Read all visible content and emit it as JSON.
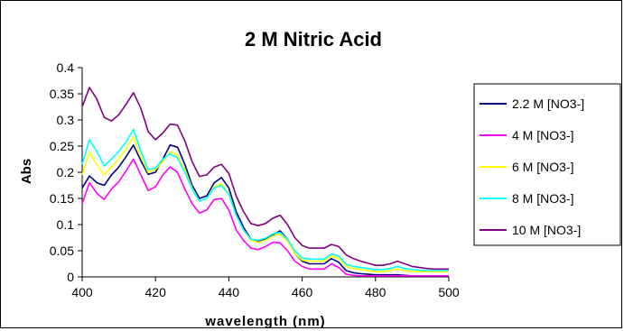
{
  "chart_data": {
    "type": "line",
    "title": "2 M Nitric Acid",
    "xlabel": "wavelength (nm)",
    "ylabel": "Abs",
    "xlim": [
      400,
      500
    ],
    "ylim": [
      0,
      0.4
    ],
    "xticks": [
      "400",
      "420",
      "440",
      "460",
      "480",
      "500"
    ],
    "yticks": [
      "0",
      "0.05",
      "0.1",
      "0.15",
      "0.2",
      "0.25",
      "0.3",
      "0.35",
      "0.4"
    ],
    "grid": false,
    "legend_position": "right",
    "x": [
      400,
      402,
      404,
      406,
      408,
      410,
      412,
      414,
      416,
      418,
      420,
      422,
      424,
      426,
      428,
      430,
      432,
      434,
      436,
      438,
      440,
      442,
      444,
      446,
      448,
      450,
      452,
      454,
      456,
      458,
      460,
      462,
      464,
      466,
      468,
      470,
      472,
      474,
      476,
      478,
      480,
      482,
      484,
      486,
      488,
      490,
      492,
      494,
      496,
      498,
      500
    ],
    "series": [
      {
        "name": "2.2 M [NO3-]",
        "color": "#000080",
        "values": [
          0.17,
          0.193,
          0.18,
          0.175,
          0.195,
          0.21,
          0.23,
          0.252,
          0.222,
          0.196,
          0.2,
          0.225,
          0.252,
          0.248,
          0.215,
          0.175,
          0.15,
          0.155,
          0.18,
          0.19,
          0.17,
          0.125,
          0.095,
          0.072,
          0.068,
          0.072,
          0.08,
          0.088,
          0.072,
          0.045,
          0.03,
          0.025,
          0.025,
          0.025,
          0.035,
          0.028,
          0.012,
          0.008,
          0.006,
          0.005,
          0.004,
          0.004,
          0.004,
          0.004,
          0.003,
          0.002,
          0.002,
          0.002,
          0.002,
          0.002,
          0.002
        ]
      },
      {
        "name": "4 M [NO3-]",
        "color": "#ff00ff",
        "values": [
          0.14,
          0.18,
          0.16,
          0.148,
          0.168,
          0.182,
          0.203,
          0.225,
          0.195,
          0.165,
          0.172,
          0.195,
          0.21,
          0.2,
          0.168,
          0.14,
          0.122,
          0.128,
          0.148,
          0.15,
          0.128,
          0.09,
          0.07,
          0.055,
          0.052,
          0.058,
          0.066,
          0.065,
          0.05,
          0.03,
          0.02,
          0.015,
          0.015,
          0.015,
          0.025,
          0.018,
          0.005,
          0.003,
          0.002,
          0.002,
          0.002,
          0.002,
          0.002,
          0.002,
          0.002,
          0.002,
          0.002,
          0.002,
          0.002,
          0.002,
          0.002
        ]
      },
      {
        "name": "6 M [NO3-]",
        "color": "#ffff00",
        "values": [
          0.195,
          0.238,
          0.215,
          0.195,
          0.21,
          0.225,
          0.245,
          0.268,
          0.23,
          0.2,
          0.205,
          0.22,
          0.24,
          0.232,
          0.205,
          0.17,
          0.145,
          0.15,
          0.172,
          0.178,
          0.16,
          0.118,
          0.09,
          0.07,
          0.066,
          0.07,
          0.078,
          0.082,
          0.068,
          0.045,
          0.032,
          0.03,
          0.03,
          0.03,
          0.04,
          0.035,
          0.02,
          0.016,
          0.014,
          0.012,
          0.01,
          0.01,
          0.012,
          0.015,
          0.012,
          0.01,
          0.01,
          0.01,
          0.01,
          0.01,
          0.01
        ]
      },
      {
        "name": "8 M [NO3-]",
        "color": "#00ffff",
        "values": [
          0.215,
          0.262,
          0.24,
          0.212,
          0.225,
          0.24,
          0.258,
          0.282,
          0.24,
          0.205,
          0.208,
          0.225,
          0.235,
          0.228,
          0.2,
          0.168,
          0.145,
          0.15,
          0.17,
          0.175,
          0.158,
          0.118,
          0.09,
          0.072,
          0.07,
          0.074,
          0.082,
          0.085,
          0.072,
          0.05,
          0.036,
          0.034,
          0.034,
          0.034,
          0.044,
          0.04,
          0.024,
          0.02,
          0.018,
          0.016,
          0.014,
          0.014,
          0.016,
          0.02,
          0.016,
          0.014,
          0.013,
          0.012,
          0.012,
          0.012,
          0.012
        ]
      },
      {
        "name": "10 M [NO3-]",
        "color": "#800080",
        "values": [
          0.325,
          0.362,
          0.34,
          0.305,
          0.298,
          0.31,
          0.33,
          0.352,
          0.322,
          0.278,
          0.262,
          0.275,
          0.292,
          0.29,
          0.26,
          0.22,
          0.192,
          0.195,
          0.21,
          0.215,
          0.198,
          0.155,
          0.125,
          0.102,
          0.098,
          0.102,
          0.112,
          0.118,
          0.1,
          0.075,
          0.06,
          0.055,
          0.055,
          0.055,
          0.062,
          0.058,
          0.042,
          0.035,
          0.03,
          0.026,
          0.022,
          0.022,
          0.025,
          0.03,
          0.025,
          0.02,
          0.018,
          0.016,
          0.015,
          0.015,
          0.015
        ]
      }
    ]
  }
}
